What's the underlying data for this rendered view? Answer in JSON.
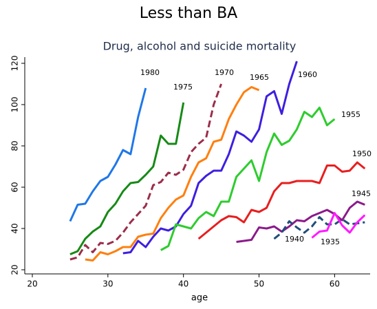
{
  "chart_data": {
    "type": "line",
    "title": "Less than BA",
    "subtitle": "Drug, alcohol and suicide mortality",
    "xlabel": "age",
    "xlim": [
      19,
      64.7
    ],
    "ylim": [
      18,
      123
    ],
    "xticks": [
      20,
      30,
      40,
      50,
      60
    ],
    "yticks": [
      20,
      40,
      60,
      80,
      100,
      120
    ],
    "grid": false,
    "series": [
      {
        "name": "1980",
        "color": "#1f77e8",
        "dashed": false,
        "x": [
          25,
          26,
          27,
          28,
          29,
          30,
          31,
          32,
          33,
          34,
          35
        ],
        "values": [
          43.5,
          51.5,
          52,
          58,
          63,
          65,
          71,
          78,
          76,
          94,
          108
        ]
      },
      {
        "name": "1975",
        "color": "#168a16",
        "dashed": false,
        "x": [
          25,
          26,
          27,
          28,
          29,
          30,
          31,
          32,
          33,
          34,
          35,
          36,
          37,
          38,
          39,
          40
        ],
        "values": [
          27.5,
          29,
          35,
          38.5,
          41,
          48,
          52,
          58,
          62,
          62.5,
          66,
          70,
          85,
          81,
          81,
          101
        ]
      },
      {
        "name": "1970",
        "color": "#9b2d4a",
        "dashed": true,
        "x": [
          25,
          26,
          27,
          28,
          29,
          30,
          31,
          32,
          33,
          34,
          35,
          36,
          37,
          38,
          39,
          40,
          41,
          42,
          43,
          44,
          45
        ],
        "values": [
          25,
          26,
          32,
          28.5,
          33,
          32.5,
          34,
          38,
          43,
          47,
          51,
          61,
          62.5,
          67,
          66,
          68.5,
          77,
          81,
          84,
          100,
          110
        ]
      },
      {
        "name": "1965",
        "color": "#ff7f0e",
        "dashed": false,
        "x": [
          27,
          28,
          29,
          30,
          31,
          32,
          33,
          34,
          35,
          36,
          37,
          38,
          39,
          40,
          41,
          42,
          43,
          44,
          45,
          46,
          47,
          48,
          49,
          50
        ],
        "values": [
          25,
          24.5,
          28.5,
          27.5,
          29,
          31,
          31,
          36,
          37,
          37.5,
          45,
          50,
          54,
          56,
          65,
          72,
          74,
          82,
          83,
          93,
          100,
          106,
          108.5,
          107
        ]
      },
      {
        "name": "1960",
        "color": "#3d1fe0",
        "dashed": false,
        "x": [
          32,
          33,
          34,
          35,
          36,
          37,
          38,
          39,
          40,
          41,
          42,
          43,
          44,
          45,
          46,
          47,
          48,
          49,
          50,
          51,
          52,
          53,
          54,
          55
        ],
        "values": [
          28,
          28.5,
          34,
          31,
          36,
          40,
          39,
          41,
          47,
          51,
          62,
          65.5,
          68,
          68,
          76,
          87,
          85,
          82,
          88,
          104,
          106.5,
          95.5,
          110,
          121
        ]
      },
      {
        "name": "1955",
        "color": "#2ecc2e",
        "dashed": false,
        "x": [
          37,
          38,
          39,
          40,
          41,
          42,
          43,
          44,
          45,
          46,
          47,
          48,
          49,
          50,
          51,
          52,
          53,
          54,
          55,
          56,
          57,
          58,
          59,
          60
        ],
        "values": [
          29.5,
          31.5,
          42,
          41,
          40,
          45,
          48,
          46,
          53,
          53,
          65,
          69,
          73,
          63,
          77,
          86,
          80.5,
          82.5,
          88,
          96.5,
          94,
          98.5,
          90,
          93
        ]
      },
      {
        "name": "1950",
        "color": "#e81e1e",
        "dashed": false,
        "x": [
          42,
          43,
          44,
          45,
          46,
          47,
          48,
          49,
          50,
          51,
          52,
          53,
          54,
          55,
          56,
          57,
          58,
          59,
          60,
          61,
          62,
          63,
          64
        ],
        "values": [
          35,
          38,
          41,
          44,
          46,
          45.5,
          43,
          49,
          48,
          50,
          58,
          62,
          62,
          63,
          63,
          63,
          62,
          70.5,
          70.5,
          67.5,
          68,
          72,
          69
        ]
      },
      {
        "name": "1945",
        "color": "#8b1a8b",
        "dashed": false,
        "x": [
          47,
          48,
          49,
          50,
          51,
          52,
          53,
          54,
          55,
          56,
          57,
          58,
          59,
          60,
          61,
          62,
          63,
          64
        ],
        "values": [
          33.5,
          34,
          34.5,
          40.5,
          40,
          41,
          38.5,
          41,
          44,
          43.5,
          46,
          47.5,
          49,
          47,
          44,
          50,
          53,
          51.5
        ]
      },
      {
        "name": "1940",
        "color": "#1f4e79",
        "dashed": true,
        "x": [
          52,
          53,
          54,
          55,
          56,
          57,
          58,
          59,
          60,
          61,
          62,
          63,
          64
        ],
        "values": [
          35,
          38,
          43.5,
          40.5,
          38,
          41,
          45.5,
          42,
          42,
          44.5,
          42,
          42.5,
          43
        ]
      },
      {
        "name": "1935",
        "color": "#ff1aff",
        "dashed": false,
        "x": [
          57,
          58,
          59,
          60,
          61,
          62,
          63,
          64
        ],
        "values": [
          35.5,
          38.5,
          39,
          47.5,
          41.5,
          38,
          43,
          46.5
        ]
      }
    ]
  }
}
